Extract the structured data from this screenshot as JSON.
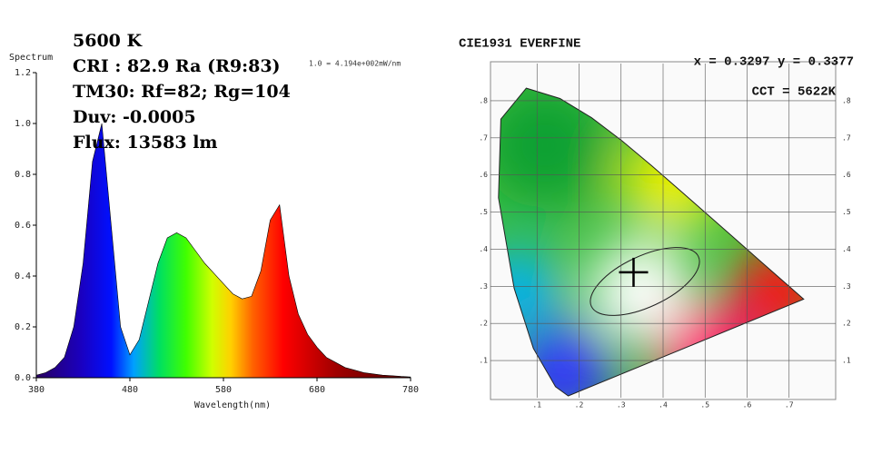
{
  "chart_data": [
    {
      "type": "area",
      "y_label": "Spectrum",
      "x_label": "Wavelength(nm)",
      "scale_note": "1.0 = 4.194e+002mW/nm",
      "annotations": [
        "5600 K",
        "CRI : 82.9 Ra (R9:83)",
        "TM30: Rf=82; Rg=104",
        "Duv: -0.0005",
        "Flux: 13583 lm"
      ],
      "x": [
        380,
        390,
        400,
        410,
        420,
        430,
        440,
        450,
        460,
        470,
        480,
        490,
        500,
        510,
        520,
        530,
        540,
        550,
        560,
        570,
        580,
        590,
        600,
        610,
        620,
        630,
        640,
        650,
        660,
        670,
        680,
        690,
        700,
        710,
        720,
        730,
        740,
        750,
        760,
        770,
        780
      ],
      "values": [
        0.01,
        0.02,
        0.04,
        0.08,
        0.2,
        0.45,
        0.85,
        1.0,
        0.6,
        0.2,
        0.09,
        0.15,
        0.3,
        0.45,
        0.55,
        0.57,
        0.55,
        0.5,
        0.45,
        0.41,
        0.37,
        0.33,
        0.31,
        0.32,
        0.42,
        0.62,
        0.68,
        0.4,
        0.25,
        0.17,
        0.12,
        0.08,
        0.06,
        0.04,
        0.03,
        0.02,
        0.015,
        0.01,
        0.008,
        0.005,
        0.003
      ],
      "xlim": [
        380,
        780
      ],
      "xticks": [
        380,
        480,
        580,
        680,
        780
      ],
      "ylim": [
        0,
        1.2
      ],
      "yticks": [
        {
          "value": 0,
          "label": "0.0"
        },
        {
          "value": 0.2,
          "label": "0.2"
        },
        {
          "value": 0.4,
          "label": "0.4"
        },
        {
          "value": 0.6,
          "label": "0.6"
        },
        {
          "value": 0.8,
          "label": "0.8"
        },
        {
          "value": 1.0,
          "label": "1.0"
        },
        {
          "value": 1.2,
          "label": "1.2"
        }
      ]
    },
    {
      "type": "chromaticity",
      "title": "CIE1931  EVERFINE",
      "coordinates": "x = 0.3297 y = 0.3377",
      "cct": "CCT = 5622K",
      "point": {
        "x": 0.3297,
        "y": 0.3377
      },
      "xlim": [
        0,
        0.8
      ],
      "ylim": [
        0,
        0.9
      ],
      "xticks": [
        {
          "value": 0.1,
          "label": ".1"
        },
        {
          "value": 0.2,
          "label": ".2"
        },
        {
          "value": 0.3,
          "label": ".3"
        },
        {
          "value": 0.4,
          "label": ".4"
        },
        {
          "value": 0.5,
          "label": ".5"
        },
        {
          "value": 0.6,
          "label": ".6"
        },
        {
          "value": 0.7,
          "label": ".7"
        }
      ],
      "yticks": [
        {
          "value": 0.1,
          "label": ".1"
        },
        {
          "value": 0.2,
          "label": ".2"
        },
        {
          "value": 0.3,
          "label": ".3"
        },
        {
          "value": 0.4,
          "label": ".4"
        },
        {
          "value": 0.5,
          "label": ".5"
        },
        {
          "value": 0.6,
          "label": ".6"
        },
        {
          "value": 0.7,
          "label": ".7"
        },
        {
          "value": 0.8,
          "label": ".8"
        }
      ]
    }
  ]
}
